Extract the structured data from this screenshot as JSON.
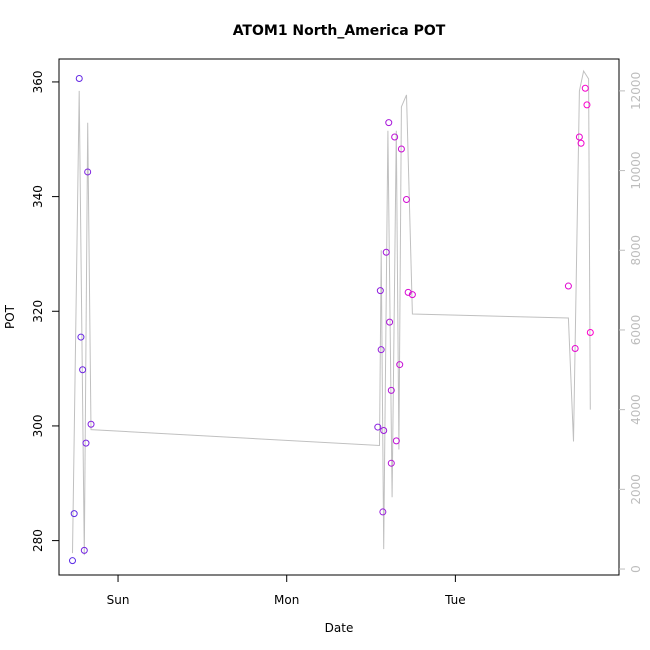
{
  "chart_data": {
    "type": "scatter",
    "title": "ATOM1 North_America POT",
    "xlabel": "Date",
    "ylabel": "POT",
    "x_ticks": [
      {
        "label": "Sun",
        "day": 1.0
      },
      {
        "label": "Mon",
        "day": 2.0
      },
      {
        "label": "Tue",
        "day": 3.0
      }
    ],
    "xlim_days": [
      0.65,
      3.97
    ],
    "ylim": [
      274,
      364
    ],
    "y_ticks": [
      280,
      300,
      320,
      340,
      360
    ],
    "y2lim": [
      -150,
      12800
    ],
    "y2_ticks": [
      0,
      2000,
      4000,
      6000,
      8000,
      10000,
      12000
    ],
    "grid": false,
    "colors": {
      "point_start": "#5a2be6",
      "point_end": "#ff00cc",
      "line": "#c0c0c0",
      "right_axis": "#bdbdbd"
    },
    "points": [
      {
        "day": 0.73,
        "pot": 276.5
      },
      {
        "day": 0.74,
        "pot": 284.7
      },
      {
        "day": 0.77,
        "pot": 360.6
      },
      {
        "day": 0.78,
        "pot": 315.5
      },
      {
        "day": 0.79,
        "pot": 309.8
      },
      {
        "day": 0.8,
        "pot": 278.3
      },
      {
        "day": 0.81,
        "pot": 297.0
      },
      {
        "day": 0.82,
        "pot": 344.3
      },
      {
        "day": 0.84,
        "pot": 300.3
      },
      {
        "day": 2.54,
        "pot": 299.8
      },
      {
        "day": 2.555,
        "pot": 323.6
      },
      {
        "day": 2.56,
        "pot": 313.3
      },
      {
        "day": 2.57,
        "pot": 285.0
      },
      {
        "day": 2.575,
        "pot": 299.2
      },
      {
        "day": 2.59,
        "pot": 330.3
      },
      {
        "day": 2.605,
        "pot": 352.9
      },
      {
        "day": 2.61,
        "pot": 318.1
      },
      {
        "day": 2.62,
        "pot": 306.2
      },
      {
        "day": 2.62,
        "pot": 293.5
      },
      {
        "day": 2.64,
        "pot": 350.4
      },
      {
        "day": 2.65,
        "pot": 297.4
      },
      {
        "day": 2.67,
        "pot": 310.7
      },
      {
        "day": 2.68,
        "pot": 348.3
      },
      {
        "day": 2.71,
        "pot": 339.5
      },
      {
        "day": 2.72,
        "pot": 323.3
      },
      {
        "day": 2.745,
        "pot": 322.9
      },
      {
        "day": 3.67,
        "pot": 324.4
      },
      {
        "day": 3.71,
        "pot": 313.5
      },
      {
        "day": 3.735,
        "pot": 350.4
      },
      {
        "day": 3.745,
        "pot": 349.3
      },
      {
        "day": 3.77,
        "pot": 358.9
      },
      {
        "day": 3.78,
        "pot": 356.0
      },
      {
        "day": 3.8,
        "pot": 316.3
      }
    ],
    "line_series": [
      {
        "day": 0.73,
        "v": 400
      },
      {
        "day": 0.77,
        "v": 12000
      },
      {
        "day": 0.8,
        "v": 350
      },
      {
        "day": 0.82,
        "v": 11200
      },
      {
        "day": 0.84,
        "v": 3500
      },
      {
        "day": 2.55,
        "v": 3100
      },
      {
        "day": 2.56,
        "v": 8000
      },
      {
        "day": 2.575,
        "v": 500
      },
      {
        "day": 2.6,
        "v": 11000
      },
      {
        "day": 2.625,
        "v": 1800
      },
      {
        "day": 2.65,
        "v": 11000
      },
      {
        "day": 2.665,
        "v": 3000
      },
      {
        "day": 2.68,
        "v": 11600
      },
      {
        "day": 2.71,
        "v": 11900
      },
      {
        "day": 2.745,
        "v": 6400
      },
      {
        "day": 3.67,
        "v": 6300
      },
      {
        "day": 3.7,
        "v": 3200
      },
      {
        "day": 3.735,
        "v": 12000
      },
      {
        "day": 3.76,
        "v": 12500
      },
      {
        "day": 3.79,
        "v": 12300
      },
      {
        "day": 3.8,
        "v": 4000
      }
    ]
  }
}
